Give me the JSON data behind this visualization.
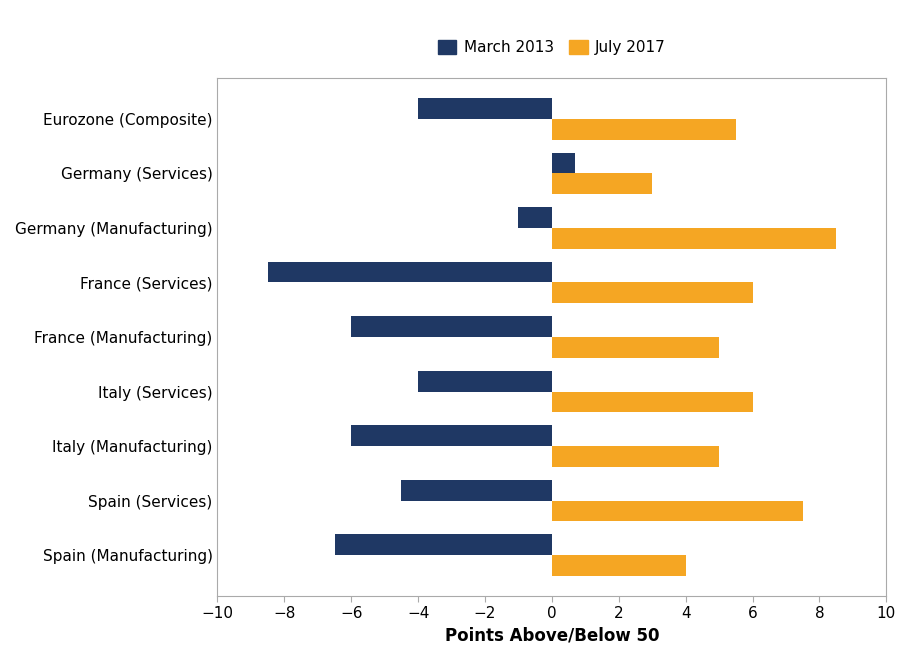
{
  "categories": [
    "Eurozone (Composite)",
    "Germany (Services)",
    "Germany (Manufacturing)",
    "France (Services)",
    "France (Manufacturing)",
    "Italy (Services)",
    "Italy (Manufacturing)",
    "Spain (Services)",
    "Spain (Manufacturing)"
  ],
  "march_2013": [
    -4.0,
    0.7,
    -1.0,
    -8.5,
    -6.0,
    -4.0,
    -6.0,
    -4.5,
    -6.5
  ],
  "july_2017": [
    5.5,
    3.0,
    8.5,
    6.0,
    5.0,
    6.0,
    5.0,
    7.5,
    4.0
  ],
  "march_color": "#1F3864",
  "july_color": "#F5A623",
  "xlabel": "Points Above/Below 50",
  "xlim": [
    -10,
    10
  ],
  "xticks": [
    -10,
    -8,
    -6,
    -4,
    -2,
    0,
    2,
    4,
    6,
    8,
    10
  ],
  "legend_march": "March 2013",
  "legend_july": "July 2017",
  "bar_height": 0.38,
  "background_color": "#ffffff"
}
